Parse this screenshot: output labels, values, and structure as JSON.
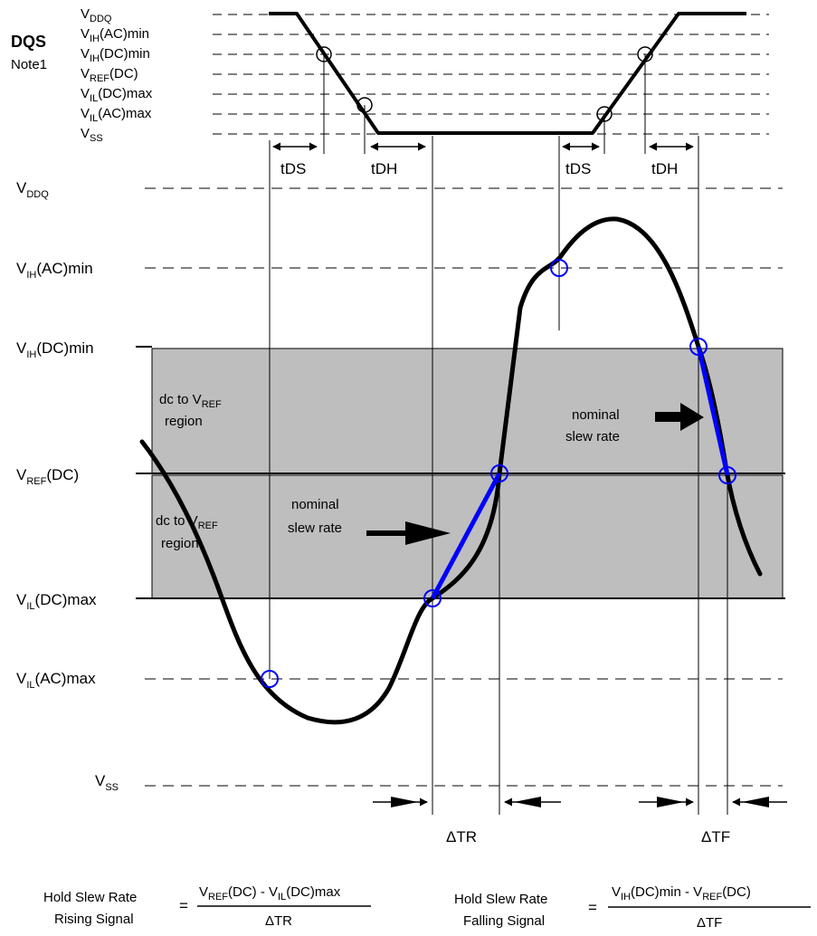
{
  "dqs": {
    "title": "DQS",
    "note": "Note1",
    "levels": [
      {
        "main": "V",
        "sub": "DDQ",
        "rest": ""
      },
      {
        "main": "V",
        "sub": "IH",
        "rest": "(AC)min"
      },
      {
        "main": "V",
        "sub": "IH",
        "rest": "(DC)min"
      },
      {
        "main": "V",
        "sub": "REF",
        "rest": "(DC)"
      },
      {
        "main": "V",
        "sub": "IL",
        "rest": "(DC)max"
      },
      {
        "main": "V",
        "sub": "IL",
        "rest": "(AC)max"
      },
      {
        "main": "V",
        "sub": "SS",
        "rest": ""
      }
    ],
    "timing_labels": [
      "tDS",
      "tDH",
      "tDS",
      "tDH"
    ]
  },
  "data_levels": [
    {
      "main": "V",
      "sub": "DDQ",
      "rest": ""
    },
    {
      "main": "V",
      "sub": "IH",
      "rest": "(AC)min"
    },
    {
      "main": "V",
      "sub": "IH",
      "rest": "(DC)min"
    },
    {
      "main": "V",
      "sub": "REF",
      "rest": "(DC)"
    },
    {
      "main": "V",
      "sub": "IL",
      "rest": "(DC)max"
    },
    {
      "main": "V",
      "sub": "IL",
      "rest": "(AC)max"
    },
    {
      "main": "V",
      "sub": "SS",
      "rest": ""
    }
  ],
  "regions": {
    "upper_line1": {
      "main": "dc to V",
      "sub": "REF"
    },
    "upper_line2": "region",
    "lower_line1": {
      "main": "dc to V",
      "sub": "REF"
    },
    "lower_line2": "region"
  },
  "annotations": {
    "rising": [
      "nominal",
      "slew rate"
    ],
    "falling": [
      "nominal",
      "slew rate"
    ]
  },
  "deltas": {
    "tr": "ΔTR",
    "tf": "ΔTF"
  },
  "formulas": {
    "rising": {
      "label1": "Hold Slew Rate",
      "label2": "Rising Signal",
      "equals": "=",
      "num_a": "V",
      "num_a_sub": "REF",
      "num_b": "(DC) - V",
      "num_b_sub": "IL",
      "num_c": "(DC)max",
      "den": "ΔTR"
    },
    "falling": {
      "label1": "Hold Slew Rate",
      "label2": "Falling Signal",
      "equals": "=",
      "num_a": "V",
      "num_a_sub": "IH",
      "num_b": "(DC)min - V",
      "num_b_sub": "REF",
      "num_c": "(DC)",
      "den": "ΔTF"
    }
  },
  "colors": {
    "signal": "#000000",
    "slew": "#0000ff",
    "region": "#bebebe",
    "marker": "#0000ff"
  }
}
